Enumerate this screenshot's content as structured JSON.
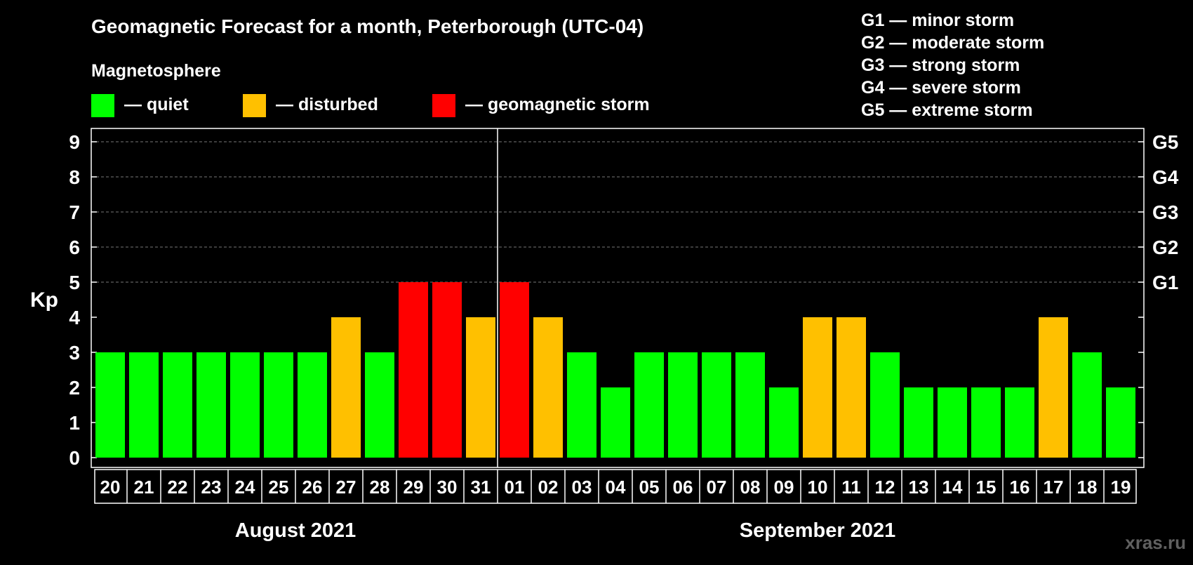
{
  "chart_data": {
    "type": "bar",
    "title": "Geomagnetic Forecast for a month, Peterborough (UTC-04)",
    "legend": {
      "heading": "Magnetosphere",
      "items": [
        {
          "label": "— quiet",
          "color": "#00ff00"
        },
        {
          "label": "— disturbed",
          "color": "#ffc000"
        },
        {
          "label": "— geomagnetic storm",
          "color": "#ff0000"
        }
      ]
    },
    "storm_scale": [
      "G1 — minor storm",
      "G2 — moderate storm",
      "G3 — strong storm",
      "G4 — severe storm",
      "G5 — extreme storm"
    ],
    "ylabel": "Kp",
    "ylim": [
      0,
      9
    ],
    "yticks": [
      "0",
      "1",
      "2",
      "3",
      "4",
      "5",
      "6",
      "7",
      "8",
      "9"
    ],
    "right_axis_labels": [
      {
        "value": 5,
        "label": "G1"
      },
      {
        "value": 6,
        "label": "G2"
      },
      {
        "value": 7,
        "label": "G3"
      },
      {
        "value": 8,
        "label": "G4"
      },
      {
        "value": 9,
        "label": "G5"
      }
    ],
    "categories": [
      "20",
      "21",
      "22",
      "23",
      "24",
      "25",
      "26",
      "27",
      "28",
      "29",
      "30",
      "31",
      "01",
      "02",
      "03",
      "04",
      "05",
      "06",
      "07",
      "08",
      "09",
      "10",
      "11",
      "12",
      "13",
      "14",
      "15",
      "16",
      "17",
      "18",
      "19"
    ],
    "values": [
      3,
      3,
      3,
      3,
      3,
      3,
      3,
      4,
      3,
      5,
      5,
      4,
      5,
      4,
      3,
      2,
      3,
      3,
      3,
      3,
      2,
      4,
      4,
      3,
      2,
      2,
      2,
      2,
      4,
      3,
      2
    ],
    "months": [
      {
        "label": "August 2021",
        "first_index": 0,
        "last_index": 11
      },
      {
        "label": "September 2021",
        "first_index": 12,
        "last_index": 30
      }
    ],
    "grid": "dashed horizontal at 5–9",
    "colors": {
      "quiet": "#00ff00",
      "disturbed": "#ffc000",
      "storm": "#ff0000"
    }
  },
  "watermark": "xras.ru"
}
